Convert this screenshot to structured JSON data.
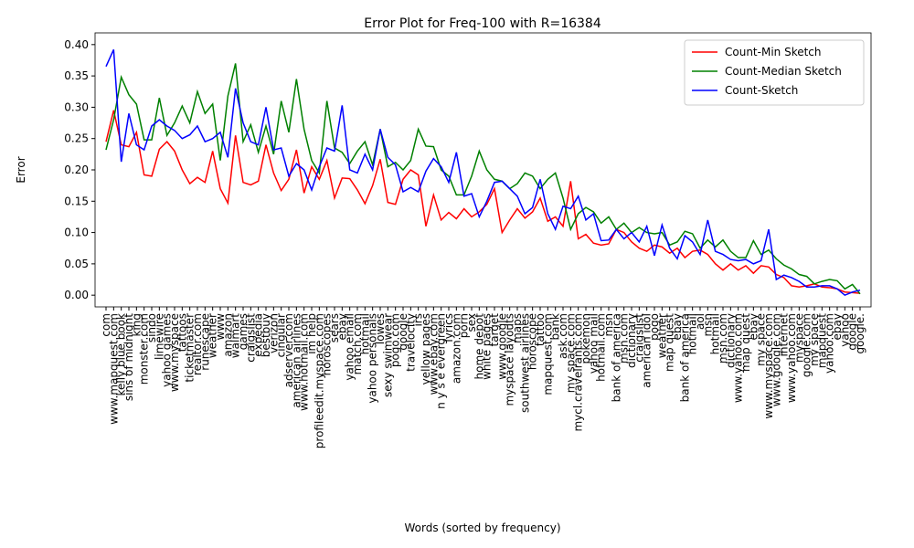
{
  "chart_data": {
    "type": "line",
    "title": "Error Plot for Freq-100 with R=16384",
    "x_label": "Words (sorted by frequency)",
    "y_label": "Error",
    "categories": [
      "com",
      "www.mapquest.com",
      "kelly blue book",
      "sins of midnight",
      "king",
      "monster.com",
      "sindo",
      "limewire",
      "yahoo games",
      "www.myspace",
      "tattoos",
      "ticketmaster",
      "realtor.com",
      "runescape",
      "weather",
      "www",
      "amazon",
      "walmart",
      "games",
      "craigslist",
      "expedia",
      "bestbuy",
      "verizon",
      "cingular",
      "adserver.com",
      "american airlines",
      "www.hotmail.com",
      "im help",
      "profileedit.myspace.com",
      "horoscopes",
      "sears",
      "ebay",
      "yahoo email",
      "match.com",
      "hotmail",
      "yahoo personals",
      "lowes",
      "sexy swimwear",
      "pogo.com",
      "google",
      "travelocity",
      "irs",
      "yellow pages",
      "www.ebay.com",
      "n y s e evergreen",
      "lyrics",
      "amazon.com",
      "porn",
      "sex",
      "home depot",
      "white pages",
      "target",
      "www.google",
      "myspace layouts",
      "maps",
      "southwest airlines",
      "horoscope",
      "tattoo",
      "mapquest.com",
      "bank",
      "ask.com",
      "my space.com",
      "mycl.cravelrants.com",
      "pokemon",
      "yahoo mail",
      "hotmail.com",
      "msn",
      "bank of america",
      "msn.com",
      "dictionary",
      "craigslist",
      "american idol",
      "pogo",
      "weather",
      "map quest",
      "ebay",
      "bank of america",
      "hotmail",
      "aol",
      "msn",
      "hotmail",
      "msn.com",
      "dictionary",
      "www.yahoo.com",
      "map quest",
      "ebay",
      "my space",
      "www.myspace.com",
      "www.google.com",
      "internet",
      "www.yahoo.com",
      "myspace",
      "google.com",
      "my space",
      "mapquest",
      "yahoo.com",
      "ebay",
      "yahoo",
      "google",
      "google."
    ],
    "series": [
      {
        "name": "Count-Min Sketch",
        "color": "#ff0000",
        "values": [
          0.245,
          0.295,
          0.24,
          0.237,
          0.26,
          0.192,
          0.19,
          0.233,
          0.245,
          0.23,
          0.2,
          0.178,
          0.188,
          0.18,
          0.23,
          0.17,
          0.147,
          0.255,
          0.18,
          0.176,
          0.182,
          0.24,
          0.195,
          0.167,
          0.185,
          0.232,
          0.163,
          0.205,
          0.185,
          0.215,
          0.155,
          0.187,
          0.186,
          0.168,
          0.146,
          0.175,
          0.217,
          0.148,
          0.145,
          0.185,
          0.2,
          0.192,
          0.11,
          0.16,
          0.12,
          0.132,
          0.122,
          0.138,
          0.125,
          0.133,
          0.145,
          0.17,
          0.1,
          0.12,
          0.138,
          0.123,
          0.133,
          0.155,
          0.118,
          0.125,
          0.11,
          0.182,
          0.09,
          0.097,
          0.083,
          0.08,
          0.082,
          0.105,
          0.1,
          0.085,
          0.075,
          0.07,
          0.08,
          0.077,
          0.067,
          0.075,
          0.06,
          0.07,
          0.072,
          0.065,
          0.05,
          0.04,
          0.05,
          0.04,
          0.047,
          0.035,
          0.047,
          0.045,
          0.033,
          0.028,
          0.015,
          0.013,
          0.015,
          0.018,
          0.013,
          0.012,
          0.01,
          0.005,
          0.004,
          0.003
        ]
      },
      {
        "name": "Count-Median Sketch",
        "color": "#008000",
        "values": [
          0.232,
          0.28,
          0.348,
          0.32,
          0.305,
          0.248,
          0.248,
          0.315,
          0.255,
          0.275,
          0.302,
          0.275,
          0.325,
          0.29,
          0.305,
          0.215,
          0.318,
          0.37,
          0.245,
          0.272,
          0.228,
          0.27,
          0.225,
          0.31,
          0.26,
          0.345,
          0.265,
          0.215,
          0.195,
          0.31,
          0.235,
          0.228,
          0.21,
          0.23,
          0.245,
          0.208,
          0.265,
          0.205,
          0.212,
          0.2,
          0.215,
          0.265,
          0.238,
          0.237,
          0.2,
          0.19,
          0.16,
          0.16,
          0.19,
          0.23,
          0.2,
          0.185,
          0.182,
          0.17,
          0.178,
          0.195,
          0.19,
          0.17,
          0.185,
          0.195,
          0.155,
          0.105,
          0.13,
          0.14,
          0.133,
          0.115,
          0.125,
          0.105,
          0.115,
          0.1,
          0.108,
          0.1,
          0.098,
          0.1,
          0.08,
          0.085,
          0.102,
          0.098,
          0.075,
          0.088,
          0.077,
          0.088,
          0.07,
          0.06,
          0.06,
          0.087,
          0.065,
          0.072,
          0.058,
          0.048,
          0.042,
          0.033,
          0.03,
          0.018,
          0.022,
          0.025,
          0.023,
          0.01,
          0.017,
          0.002
        ]
      },
      {
        "name": "Count-Sketch",
        "color": "#0000ff",
        "values": [
          0.365,
          0.392,
          0.213,
          0.29,
          0.24,
          0.232,
          0.27,
          0.28,
          0.27,
          0.263,
          0.25,
          0.256,
          0.27,
          0.245,
          0.25,
          0.26,
          0.22,
          0.33,
          0.275,
          0.245,
          0.24,
          0.3,
          0.232,
          0.235,
          0.19,
          0.21,
          0.2,
          0.168,
          0.205,
          0.235,
          0.23,
          0.303,
          0.2,
          0.195,
          0.225,
          0.2,
          0.265,
          0.22,
          0.208,
          0.165,
          0.172,
          0.165,
          0.198,
          0.218,
          0.205,
          0.18,
          0.228,
          0.158,
          0.162,
          0.125,
          0.15,
          0.18,
          0.182,
          0.17,
          0.158,
          0.13,
          0.14,
          0.185,
          0.13,
          0.105,
          0.142,
          0.138,
          0.158,
          0.12,
          0.13,
          0.087,
          0.088,
          0.105,
          0.09,
          0.1,
          0.085,
          0.11,
          0.063,
          0.112,
          0.075,
          0.058,
          0.095,
          0.085,
          0.065,
          0.12,
          0.07,
          0.065,
          0.057,
          0.055,
          0.057,
          0.05,
          0.055,
          0.105,
          0.025,
          0.032,
          0.028,
          0.022,
          0.013,
          0.013,
          0.015,
          0.015,
          0.01,
          0.0,
          0.005,
          0.008
        ]
      }
    ],
    "ylim": [
      -0.0187,
      0.4187
    ],
    "yticks": [
      {
        "value": 0,
        "label": "0.00"
      },
      {
        "value": 0.05,
        "label": "0.05"
      },
      {
        "value": 0.1,
        "label": "0.10"
      },
      {
        "value": 0.15,
        "label": "0.15"
      },
      {
        "value": 0.2,
        "label": "0.20"
      },
      {
        "value": 0.25,
        "label": "0.25"
      },
      {
        "value": 0.3,
        "label": "0.30"
      },
      {
        "value": 0.35,
        "label": "0.35"
      },
      {
        "value": 0.4,
        "label": "0.40"
      }
    ],
    "legend": "upper right"
  }
}
